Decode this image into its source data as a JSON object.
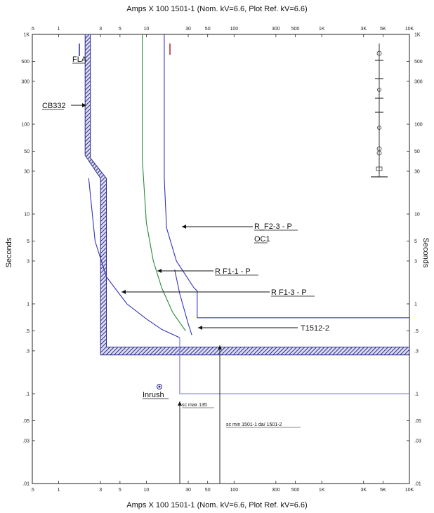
{
  "chart_data": {
    "type": "line",
    "title_top": "Amps X 100 1501-1 (Nom. kV=6.6, Plot Ref. kV=6.6)",
    "title_bottom": "Amps X 100 1501-1 (Nom. kV=6.6, Plot Ref. kV=6.6)",
    "ylabel_left": "Seconds",
    "ylabel_right": "Seconds",
    "x_scale": "log",
    "y_scale": "log",
    "xlim": [
      0.5,
      10000
    ],
    "ylim": [
      0.01,
      1000
    ],
    "x_ticks": [
      {
        "v": 0.5,
        "t": ".5"
      },
      {
        "v": 1,
        "t": "1"
      },
      {
        "v": 3,
        "t": "3"
      },
      {
        "v": 5,
        "t": "5"
      },
      {
        "v": 10,
        "t": "10"
      },
      {
        "v": 30,
        "t": "30"
      },
      {
        "v": 50,
        "t": "50"
      },
      {
        "v": 100,
        "t": "100"
      },
      {
        "v": 300,
        "t": "300"
      },
      {
        "v": 500,
        "t": "500"
      },
      {
        "v": 1000,
        "t": "1K"
      },
      {
        "v": 3000,
        "t": "3K"
      },
      {
        "v": 5000,
        "t": "5K"
      },
      {
        "v": 10000,
        "t": "10K"
      }
    ],
    "y_ticks": [
      {
        "v": 1000,
        "t": "1K"
      },
      {
        "v": 500,
        "t": "500"
      },
      {
        "v": 300,
        "t": "300"
      },
      {
        "v": 100,
        "t": "100"
      },
      {
        "v": 50,
        "t": "50"
      },
      {
        "v": 30,
        "t": "30"
      },
      {
        "v": 10,
        "t": "10"
      },
      {
        "v": 5,
        "t": "5"
      },
      {
        "v": 3,
        "t": "3"
      },
      {
        "v": 1,
        "t": "1"
      },
      {
        "v": 0.5,
        "t": ".5"
      },
      {
        "v": 0.3,
        "t": ".3"
      },
      {
        "v": 0.1,
        "t": ".1"
      },
      {
        "v": 0.05,
        "t": ".05"
      },
      {
        "v": 0.03,
        "t": ".03"
      },
      {
        "v": 0.01,
        "t": ".01"
      }
    ],
    "series": [
      {
        "name": "CB332",
        "color": "#2b2b8c",
        "style": "band",
        "points": [
          [
            2.0,
            1000
          ],
          [
            2.0,
            45
          ],
          [
            3.0,
            25
          ],
          [
            3.0,
            0.27
          ],
          [
            10000,
            0.27
          ]
        ],
        "band_top": [
          [
            2.3,
            1000
          ],
          [
            2.3,
            42
          ],
          [
            3.5,
            25
          ],
          [
            3.5,
            0.33
          ],
          [
            10000,
            0.33
          ]
        ]
      },
      {
        "name": "R_F2-3 - P",
        "color": "#3333bb",
        "style": "line",
        "points": [
          [
            16,
            1000
          ],
          [
            16,
            25
          ],
          [
            17,
            7
          ],
          [
            22,
            3
          ],
          [
            35,
            1.5
          ],
          [
            38,
            1.4
          ],
          [
            38,
            0.7
          ],
          [
            10000,
            0.7
          ]
        ]
      },
      {
        "name": "R F1-1 - P",
        "color": "#2a8a3a",
        "style": "line",
        "points": [
          [
            9,
            1000
          ],
          [
            9,
            40
          ],
          [
            10,
            8
          ],
          [
            12,
            3
          ],
          [
            15,
            1.5
          ],
          [
            20,
            0.8
          ],
          [
            28,
            0.5
          ]
        ]
      },
      {
        "name": "R F1-3 - P",
        "color": "#3333bb",
        "style": "line",
        "points": [
          [
            2.2,
            25
          ],
          [
            2.6,
            5
          ],
          [
            3.5,
            2
          ],
          [
            6,
            1
          ],
          [
            10,
            0.68
          ],
          [
            15,
            0.52
          ],
          [
            24,
            0.42
          ]
        ]
      },
      {
        "name": "T1512-2",
        "color": "#3333bb",
        "style": "line",
        "points": [
          [
            21,
            2.4
          ],
          [
            24,
            1.3
          ],
          [
            30,
            0.6
          ],
          [
            33,
            0.45
          ]
        ]
      },
      {
        "name": "",
        "color": "#7777cc",
        "style": "line",
        "points": [
          [
            24,
            0.42
          ],
          [
            24,
            0.1
          ],
          [
            10000,
            0.1
          ]
        ]
      }
    ],
    "labels": {
      "fla": "FLA",
      "cb332": "CB332",
      "rf23": "R_F2-3 - P",
      "oc1": "OC1",
      "rf11": "R F1-1 - P",
      "rf13": "R F1-3 - P",
      "t1512": "T1512-2",
      "inrush": "Inrush",
      "scmax": "sc max 135",
      "scmin": "sc min 1501-1 da/ 1501-2"
    }
  }
}
